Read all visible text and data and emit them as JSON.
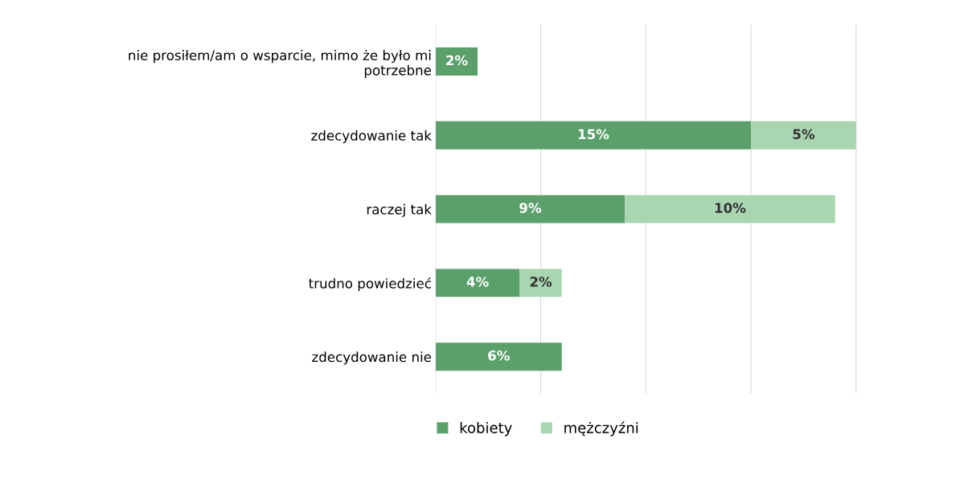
{
  "chart_data": {
    "type": "bar",
    "orientation": "horizontal",
    "stacked": true,
    "categories": [
      "nie prosiłem/am o wsparcie, mimo że było mi\npotrzebne",
      "zdecydowanie tak",
      "raczej tak",
      "trudno powiedzieć",
      "zdecydowanie nie"
    ],
    "series": [
      {
        "name": "kobiety",
        "color": "#5b9f6b",
        "values": [
          2,
          15,
          9,
          4,
          6
        ],
        "value_labels": [
          "2%",
          "15%",
          "9%",
          "4%",
          "6%"
        ]
      },
      {
        "name": "mężczyźni",
        "color": "#a9d5b0",
        "values": [
          null,
          5,
          10,
          2,
          null
        ],
        "value_labels": [
          null,
          "5%",
          "10%",
          "2%",
          null
        ]
      }
    ],
    "tick_labels": "y",
    "grid": "x",
    "legend": "bottom"
  }
}
